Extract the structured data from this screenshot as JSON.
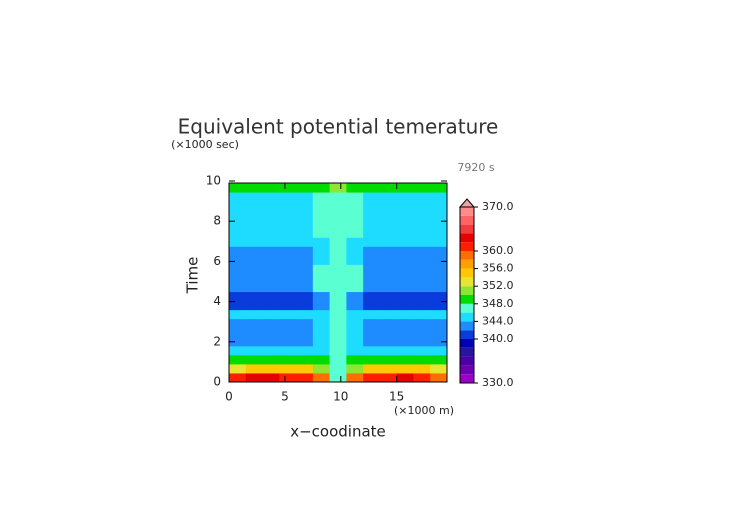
{
  "chart_data": {
    "type": "contour",
    "title": "Equivalent potential temerature",
    "time_label": "7920 s",
    "x_label": "x−coodinate",
    "x_unit": "(×1000 m)",
    "y_label": "Time",
    "y_unit": "(×1000 sec)",
    "xlim": [
      0,
      19.5
    ],
    "ylim": [
      0,
      9.9
    ],
    "xticks": [
      0,
      5,
      10,
      15
    ],
    "yticks": [
      0,
      2,
      4,
      6,
      8,
      10
    ],
    "x": [
      0.75,
      2.25,
      3.75,
      5.25,
      6.75,
      8.25,
      9.75,
      11.25,
      12.75,
      14.25,
      15.75,
      17.25,
      18.75
    ],
    "y": [
      0.225,
      0.675,
      1.125,
      1.575,
      2.025,
      2.475,
      2.925,
      3.375,
      3.825,
      4.275,
      4.725,
      5.175,
      5.625,
      6.075,
      6.525,
      6.975,
      7.425,
      7.875,
      8.325,
      8.775,
      9.225,
      9.675
    ],
    "z": [
      [
        361,
        362,
        362,
        361,
        360,
        358,
        347,
        358,
        360,
        361,
        362,
        361,
        358
      ],
      [
        352,
        354,
        355,
        355,
        354,
        350,
        347,
        350,
        354,
        355,
        355,
        354,
        352
      ],
      [
        348.5,
        349,
        349,
        349,
        349,
        348,
        347,
        348,
        349,
        349,
        349,
        349,
        348.5
      ],
      [
        345,
        345,
        345,
        345,
        345,
        345,
        347,
        345,
        345,
        345,
        345,
        345,
        345
      ],
      [
        343,
        343,
        343,
        343,
        343,
        345,
        347,
        345,
        343,
        343,
        343,
        343,
        343
      ],
      [
        343,
        343,
        343,
        343,
        343,
        345,
        347,
        345,
        343,
        343,
        343,
        343,
        343
      ],
      [
        343,
        343,
        343,
        343,
        343,
        345,
        347,
        345,
        343,
        343,
        343,
        343,
        343
      ],
      [
        344.5,
        344.5,
        344.5,
        344.5,
        344.5,
        345,
        347,
        345,
        344.5,
        344.5,
        344.5,
        344.5,
        344.5
      ],
      [
        341,
        341,
        341,
        341,
        341,
        343,
        347,
        343,
        341,
        341,
        341,
        341,
        341
      ],
      [
        341,
        341,
        341,
        341,
        341,
        343,
        347,
        343,
        341,
        341,
        341,
        341,
        341
      ],
      [
        342,
        342,
        342,
        342,
        342,
        346.5,
        347,
        346.5,
        342,
        342,
        342,
        342,
        342
      ],
      [
        343,
        343,
        343,
        343,
        343,
        346.5,
        347,
        346.5,
        343,
        343,
        343,
        343,
        343
      ],
      [
        343,
        343,
        343,
        343,
        343,
        346.5,
        347,
        346.5,
        343,
        343,
        343,
        343,
        343
      ],
      [
        343,
        343,
        343,
        343,
        343,
        345,
        347,
        345,
        343,
        343,
        343,
        343,
        343
      ],
      [
        343,
        343,
        343,
        343,
        343,
        345,
        347,
        345,
        343,
        343,
        343,
        343,
        343
      ],
      [
        345,
        345,
        345,
        345,
        345,
        345,
        347,
        345,
        345,
        345,
        345,
        345,
        345
      ],
      [
        345,
        345,
        345,
        345,
        345,
        346.5,
        347,
        346.5,
        345,
        345,
        345,
        345,
        345
      ],
      [
        345,
        345,
        345,
        345,
        345,
        346.5,
        347,
        346.5,
        345,
        345,
        345,
        345,
        345
      ],
      [
        345,
        345,
        345,
        345,
        345,
        346.5,
        347,
        346.5,
        345,
        345,
        345,
        345,
        345
      ],
      [
        345,
        345,
        345,
        345,
        345,
        346.5,
        347,
        346.5,
        345,
        345,
        345,
        345,
        345
      ],
      [
        345,
        345,
        345,
        345,
        345,
        346.5,
        347,
        346.5,
        345,
        345,
        345,
        345,
        345
      ],
      [
        349,
        349,
        349,
        349,
        349,
        349,
        350,
        349,
        349,
        349,
        349,
        349,
        349
      ]
    ],
    "colorbar": {
      "levels": [
        330,
        332,
        334,
        336,
        338,
        340,
        342,
        344,
        346,
        348,
        350,
        352,
        354,
        356,
        358,
        360,
        362,
        364,
        366,
        368,
        370
      ],
      "colors": [
        "#9a00c8",
        "#6e00b4",
        "#4b00a8",
        "#2814a0",
        "#0000b4",
        "#0a3cdc",
        "#1e8cff",
        "#1edcff",
        "#5affd2",
        "#00dc00",
        "#8ce632",
        "#e6e632",
        "#ffc800",
        "#ffa000",
        "#ff6e00",
        "#ff1e00",
        "#e60000",
        "#f03c3c",
        "#ff6464",
        "#ff8c8c"
      ],
      "extend_color": "#f0a0a0",
      "ticks": [
        {
          "value": 330,
          "label": "330.0"
        },
        {
          "value": 340,
          "label": "340.0"
        },
        {
          "value": 344,
          "label": "344.0"
        },
        {
          "value": 348,
          "label": "348.0"
        },
        {
          "value": 352,
          "label": "352.0"
        },
        {
          "value": 356,
          "label": "356.0"
        },
        {
          "value": 360,
          "label": "360.0"
        },
        {
          "value": 370,
          "label": "370.0"
        }
      ]
    }
  }
}
